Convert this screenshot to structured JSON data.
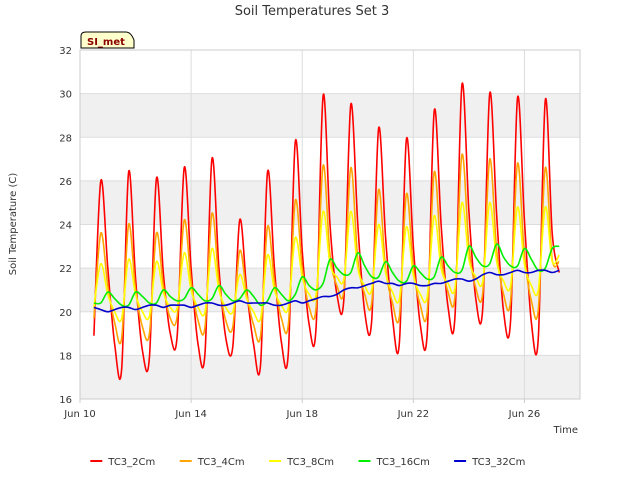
{
  "chart_data": {
    "type": "line",
    "title": "Soil Temperatures Set 3",
    "xlabel": "Time",
    "ylabel": "Soil Temperature (C)",
    "badge": "SI_met",
    "x_unit": "date (June)",
    "xlim": [
      "Jun 10",
      "Jun 28"
    ],
    "ylim": [
      16,
      32
    ],
    "y_ticks": [
      16,
      18,
      20,
      22,
      24,
      26,
      28,
      30,
      32
    ],
    "x_ticks": [
      "Jun 10",
      "Jun 14",
      "Jun 18",
      "Jun 22",
      "Jun 26"
    ],
    "grid": true,
    "legend_position": "bottom",
    "x": [
      "Jun 10 12:00",
      "Jun 10 18:00",
      "Jun 11 00:00",
      "Jun 11 06:00",
      "Jun 11 12:00",
      "Jun 11 18:00",
      "Jun 12 00:00",
      "Jun 12 06:00",
      "Jun 12 12:00",
      "Jun 12 18:00",
      "Jun 13 00:00",
      "Jun 13 06:00",
      "Jun 13 12:00",
      "Jun 13 18:00",
      "Jun 14 00:00",
      "Jun 14 06:00",
      "Jun 14 12:00",
      "Jun 14 18:00",
      "Jun 15 00:00",
      "Jun 15 06:00",
      "Jun 15 12:00",
      "Jun 15 18:00",
      "Jun 16 00:00",
      "Jun 16 06:00",
      "Jun 16 12:00",
      "Jun 16 18:00",
      "Jun 17 00:00",
      "Jun 17 06:00",
      "Jun 17 12:00",
      "Jun 17 18:00",
      "Jun 18 00:00",
      "Jun 18 06:00",
      "Jun 18 12:00",
      "Jun 18 18:00",
      "Jun 19 00:00",
      "Jun 19 06:00",
      "Jun 19 12:00",
      "Jun 19 18:00",
      "Jun 20 00:00",
      "Jun 20 06:00",
      "Jun 20 12:00",
      "Jun 20 18:00",
      "Jun 21 00:00",
      "Jun 21 06:00",
      "Jun 21 12:00",
      "Jun 21 18:00",
      "Jun 22 00:00",
      "Jun 22 06:00",
      "Jun 22 12:00",
      "Jun 22 18:00",
      "Jun 23 00:00",
      "Jun 23 06:00",
      "Jun 23 12:00",
      "Jun 23 18:00",
      "Jun 24 00:00",
      "Jun 24 06:00",
      "Jun 24 12:00",
      "Jun 24 18:00",
      "Jun 25 00:00",
      "Jun 25 06:00",
      "Jun 25 12:00",
      "Jun 25 18:00",
      "Jun 26 00:00",
      "Jun 26 06:00",
      "Jun 26 12:00",
      "Jun 26 18:00",
      "Jun 27 00:00",
      "Jun 27 06:00"
    ],
    "series": [
      {
        "name": "TC3_2Cm",
        "color": "#ff0000",
        "values": [
          18.9,
          26.0,
          22.0,
          18.5,
          17.4,
          26.4,
          21.5,
          18.2,
          17.9,
          26.1,
          21.8,
          19.0,
          18.9,
          26.6,
          22.0,
          18.5,
          18.1,
          27.0,
          22.0,
          18.8,
          18.4,
          24.2,
          21.0,
          18.5,
          17.6,
          26.4,
          22.0,
          18.6,
          18.1,
          27.8,
          22.8,
          19.4,
          19.3,
          29.9,
          24.0,
          20.8,
          20.6,
          29.5,
          24.0,
          20.0,
          19.6,
          28.4,
          23.4,
          19.7,
          18.6,
          27.9,
          23.0,
          19.4,
          19.0,
          29.2,
          24.0,
          20.2,
          19.8,
          30.4,
          24.6,
          20.6,
          20.2,
          30.0,
          24.4,
          20.0,
          19.6,
          29.8,
          24.2,
          19.5,
          18.8,
          29.7,
          23.6,
          21.8
        ]
      },
      {
        "name": "TC3_4Cm",
        "color": "#ffa500",
        "values": [
          19.7,
          23.6,
          21.2,
          19.5,
          18.8,
          24.0,
          21.0,
          19.3,
          19.0,
          23.6,
          21.2,
          19.7,
          19.8,
          24.2,
          21.4,
          19.6,
          19.3,
          24.5,
          21.4,
          19.6,
          19.3,
          22.8,
          20.8,
          19.4,
          18.9,
          23.9,
          21.4,
          19.7,
          19.4,
          25.1,
          22.0,
          20.2,
          20.2,
          26.7,
          22.6,
          21.2,
          21.0,
          26.6,
          22.4,
          20.8,
          20.4,
          25.6,
          22.0,
          20.4,
          19.8,
          25.4,
          22.0,
          20.3,
          20.0,
          26.4,
          22.6,
          20.9,
          20.7,
          27.2,
          23.0,
          21.1,
          20.9,
          27.0,
          22.8,
          20.8,
          20.5,
          26.8,
          22.6,
          20.5,
          20.1,
          26.6,
          22.4,
          22.3
        ]
      },
      {
        "name": "TC3_8Cm",
        "color": "#ffff00",
        "values": [
          20.2,
          22.2,
          20.8,
          20.0,
          19.7,
          22.4,
          20.8,
          20.0,
          19.8,
          22.3,
          20.9,
          20.2,
          20.2,
          22.7,
          21.0,
          20.2,
          20.0,
          22.9,
          21.0,
          20.2,
          20.0,
          21.7,
          20.6,
          20.0,
          19.7,
          22.6,
          21.0,
          20.3,
          20.2,
          23.4,
          21.6,
          20.8,
          20.8,
          24.6,
          22.2,
          21.6,
          21.5,
          24.6,
          22.0,
          21.2,
          21.0,
          24.0,
          21.8,
          20.9,
          20.6,
          23.9,
          21.7,
          20.8,
          20.7,
          24.4,
          22.0,
          21.3,
          21.1,
          25.0,
          22.4,
          21.6,
          21.4,
          25.0,
          22.3,
          21.4,
          21.2,
          24.8,
          22.2,
          21.2,
          21.0,
          24.8,
          22.3,
          22.6
        ]
      },
      {
        "name": "TC3_16Cm",
        "color": "#00ee00",
        "values": [
          20.4,
          20.4,
          20.9,
          20.6,
          20.3,
          20.3,
          20.9,
          20.7,
          20.4,
          20.4,
          21.0,
          20.7,
          20.5,
          20.6,
          21.1,
          20.8,
          20.5,
          20.6,
          21.2,
          20.8,
          20.5,
          20.6,
          21.0,
          20.7,
          20.3,
          20.5,
          21.1,
          20.8,
          20.5,
          20.8,
          21.6,
          21.2,
          21.0,
          21.3,
          22.4,
          22.0,
          21.7,
          21.8,
          22.7,
          22.1,
          21.6,
          21.6,
          22.3,
          21.8,
          21.4,
          21.4,
          22.1,
          21.8,
          21.5,
          21.6,
          22.5,
          22.1,
          21.8,
          21.9,
          23.0,
          22.5,
          22.1,
          22.2,
          23.1,
          22.5,
          22.1,
          22.1,
          22.9,
          22.4,
          21.9,
          22.0,
          22.9,
          23.0
        ]
      },
      {
        "name": "TC3_32Cm",
        "color": "#0000cc",
        "values": [
          20.2,
          20.1,
          20.0,
          20.1,
          20.2,
          20.2,
          20.1,
          20.2,
          20.3,
          20.3,
          20.2,
          20.3,
          20.3,
          20.3,
          20.2,
          20.3,
          20.4,
          20.4,
          20.3,
          20.3,
          20.4,
          20.5,
          20.4,
          20.4,
          20.4,
          20.4,
          20.3,
          20.3,
          20.4,
          20.5,
          20.4,
          20.5,
          20.6,
          20.7,
          20.7,
          20.8,
          21.0,
          21.1,
          21.1,
          21.2,
          21.3,
          21.4,
          21.3,
          21.3,
          21.2,
          21.3,
          21.3,
          21.2,
          21.2,
          21.3,
          21.3,
          21.4,
          21.5,
          21.5,
          21.4,
          21.5,
          21.7,
          21.8,
          21.7,
          21.7,
          21.8,
          21.9,
          21.8,
          21.8,
          21.9,
          21.9,
          21.8,
          21.9
        ]
      }
    ]
  }
}
